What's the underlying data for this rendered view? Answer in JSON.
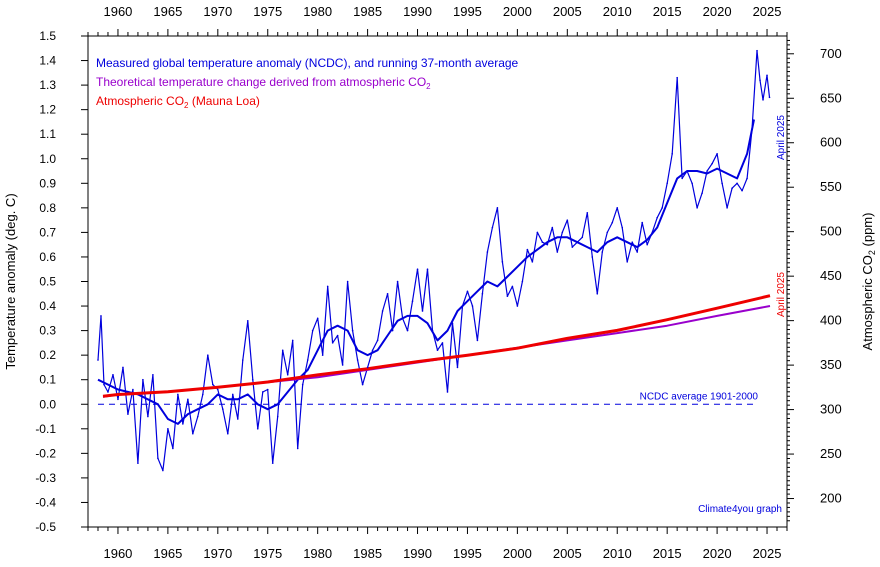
{
  "chart_data": {
    "type": "line",
    "title": "",
    "x_axis": {
      "range": [
        1957,
        2027
      ],
      "major_ticks": [
        1960,
        1965,
        1970,
        1975,
        1980,
        1985,
        1990,
        1995,
        2000,
        2005,
        2010,
        2015,
        2020,
        2025
      ],
      "tick_labels": [
        "1960",
        "1965",
        "1970",
        "1975",
        "1980",
        "1985",
        "1990",
        "1995",
        "2000",
        "2005",
        "2010",
        "2015",
        "2020",
        "2025"
      ],
      "label": ""
    },
    "y_left": {
      "label": "Temperature anomaly (deg. C)",
      "range": [
        -0.5,
        1.5
      ],
      "tick_labels": [
        "-0.5",
        "-0.4",
        "-0.3",
        "-0.2",
        "-0.1",
        "0.0",
        "0.1",
        "0.2",
        "0.3",
        "0.4",
        "0.5",
        "0.6",
        "0.7",
        "0.8",
        "0.9",
        "1.0",
        "1.1",
        "1.2",
        "1.3",
        "1.4",
        "1.5"
      ]
    },
    "y_right": {
      "label_prefix": "Atmospheric CO",
      "label_sub": "2",
      "label_suffix": " (ppm)",
      "range": [
        168,
        720
      ],
      "tick_labels": [
        "200",
        "250",
        "300",
        "350",
        "400",
        "450",
        "500",
        "550",
        "600",
        "650",
        "700"
      ]
    },
    "legend": [
      {
        "text": "Measured global temperature anomaly (NCDC), and running 37-month average",
        "sub": "",
        "tail": "",
        "color": "#0000dd"
      },
      {
        "text": "Theoretical temperature change derived from atmospheric CO",
        "sub": "2",
        "tail": "",
        "color": "#9900cc"
      },
      {
        "text": "Atmospheric CO",
        "sub": "2",
        "tail": " (Mauna Loa)",
        "color": "#ee0000"
      }
    ],
    "annotations": {
      "reference_line": "NCDC average 1901-2000",
      "credit": "Climate4you graph",
      "temp_end_label": "April 2025",
      "co2_end_label": "April 2025"
    },
    "reference_value": 0.0,
    "series": [
      {
        "name": "Measured global temperature anomaly (NCDC)",
        "color": "#0000dd",
        "x": [
          1958.0,
          1958.3,
          1958.6,
          1959.0,
          1959.5,
          1960.0,
          1960.5,
          1961.0,
          1961.5,
          1962.0,
          1962.5,
          1963.0,
          1963.5,
          1964.0,
          1964.5,
          1965.0,
          1965.5,
          1966.0,
          1966.5,
          1967.0,
          1967.5,
          1968.0,
          1968.5,
          1969.0,
          1969.5,
          1970.0,
          1970.5,
          1971.0,
          1971.5,
          1972.0,
          1972.5,
          1973.0,
          1973.5,
          1974.0,
          1974.5,
          1975.0,
          1975.5,
          1976.0,
          1976.5,
          1977.0,
          1977.5,
          1978.0,
          1978.5,
          1979.0,
          1979.5,
          1980.0,
          1980.5,
          1981.0,
          1981.5,
          1982.0,
          1982.5,
          1983.0,
          1983.5,
          1984.0,
          1984.5,
          1985.0,
          1985.5,
          1986.0,
          1986.5,
          1987.0,
          1987.5,
          1988.0,
          1988.5,
          1989.0,
          1989.5,
          1990.0,
          1990.5,
          1991.0,
          1991.5,
          1992.0,
          1992.5,
          1993.0,
          1993.5,
          1994.0,
          1994.5,
          1995.0,
          1995.5,
          1996.0,
          1996.5,
          1997.0,
          1997.5,
          1998.0,
          1998.5,
          1999.0,
          1999.5,
          2000.0,
          2000.5,
          2001.0,
          2001.5,
          2002.0,
          2002.5,
          2003.0,
          2003.5,
          2004.0,
          2004.5,
          2005.0,
          2005.5,
          2006.0,
          2006.5,
          2007.0,
          2007.5,
          2008.0,
          2008.5,
          2009.0,
          2009.5,
          2010.0,
          2010.5,
          2011.0,
          2011.5,
          2012.0,
          2012.5,
          2013.0,
          2013.5,
          2014.0,
          2014.5,
          2015.0,
          2015.5,
          2016.0,
          2016.5,
          2017.0,
          2017.5,
          2018.0,
          2018.5,
          2019.0,
          2019.5,
          2020.0,
          2020.5,
          2021.0,
          2021.5,
          2022.0,
          2022.5,
          2023.0,
          2023.5,
          2024.0,
          2024.3,
          2024.6,
          2025.0,
          2025.25
        ],
        "y": [
          0.18,
          0.36,
          0.08,
          0.05,
          0.12,
          0.02,
          0.15,
          -0.04,
          0.06,
          -0.24,
          0.1,
          -0.05,
          0.12,
          -0.22,
          -0.27,
          -0.1,
          -0.18,
          0.04,
          -0.08,
          0.02,
          -0.12,
          -0.05,
          0.04,
          0.2,
          0.08,
          0.06,
          -0.02,
          -0.12,
          0.04,
          -0.06,
          0.18,
          0.34,
          0.1,
          -0.1,
          0.05,
          0.06,
          -0.24,
          -0.05,
          0.22,
          0.12,
          0.26,
          -0.18,
          0.08,
          0.18,
          0.3,
          0.35,
          0.2,
          0.48,
          0.25,
          0.28,
          0.16,
          0.5,
          0.3,
          0.18,
          0.08,
          0.15,
          0.22,
          0.26,
          0.38,
          0.45,
          0.3,
          0.5,
          0.35,
          0.3,
          0.42,
          0.55,
          0.38,
          0.55,
          0.3,
          0.22,
          0.25,
          0.05,
          0.33,
          0.15,
          0.4,
          0.46,
          0.4,
          0.26,
          0.45,
          0.62,
          0.72,
          0.8,
          0.58,
          0.44,
          0.48,
          0.4,
          0.5,
          0.63,
          0.58,
          0.7,
          0.66,
          0.65,
          0.72,
          0.62,
          0.7,
          0.75,
          0.64,
          0.66,
          0.68,
          0.78,
          0.6,
          0.45,
          0.62,
          0.7,
          0.74,
          0.8,
          0.72,
          0.58,
          0.66,
          0.62,
          0.74,
          0.65,
          0.7,
          0.76,
          0.8,
          0.9,
          1.02,
          1.33,
          0.92,
          0.95,
          0.9,
          0.8,
          0.86,
          0.95,
          0.98,
          1.02,
          0.9,
          0.8,
          0.88,
          0.9,
          0.87,
          0.92,
          1.12,
          1.44,
          1.32,
          1.24,
          1.34,
          1.25
        ]
      },
      {
        "name": "Running 37-month average",
        "color": "#0000dd",
        "x": [
          1958.0,
          1960.0,
          1962.0,
          1964.0,
          1965.0,
          1966.0,
          1967.0,
          1968.0,
          1969.0,
          1970.0,
          1971.0,
          1972.0,
          1973.0,
          1974.0,
          1975.0,
          1976.0,
          1977.0,
          1978.0,
          1979.0,
          1980.0,
          1981.0,
          1982.0,
          1983.0,
          1984.0,
          1985.0,
          1986.0,
          1987.0,
          1988.0,
          1989.0,
          1990.0,
          1991.0,
          1992.0,
          1993.0,
          1994.0,
          1995.0,
          1996.0,
          1997.0,
          1998.0,
          1999.0,
          2000.0,
          2001.0,
          2002.0,
          2003.0,
          2004.0,
          2005.0,
          2006.0,
          2007.0,
          2008.0,
          2009.0,
          2010.0,
          2011.0,
          2012.0,
          2013.0,
          2014.0,
          2015.0,
          2016.0,
          2017.0,
          2018.0,
          2019.0,
          2020.0,
          2021.0,
          2022.0,
          2023.0,
          2023.7
        ],
        "y": [
          0.1,
          0.06,
          0.04,
          0.0,
          -0.06,
          -0.08,
          -0.04,
          -0.02,
          0.0,
          0.04,
          0.02,
          0.02,
          0.04,
          0.0,
          -0.02,
          0.0,
          0.05,
          0.1,
          0.14,
          0.22,
          0.3,
          0.32,
          0.3,
          0.22,
          0.2,
          0.22,
          0.28,
          0.34,
          0.36,
          0.36,
          0.33,
          0.26,
          0.3,
          0.38,
          0.42,
          0.46,
          0.5,
          0.48,
          0.52,
          0.56,
          0.6,
          0.63,
          0.66,
          0.68,
          0.68,
          0.66,
          0.64,
          0.62,
          0.66,
          0.68,
          0.66,
          0.64,
          0.67,
          0.72,
          0.82,
          0.92,
          0.95,
          0.95,
          0.94,
          0.96,
          0.94,
          0.92,
          1.02,
          1.16
        ]
      },
      {
        "name": "Theoretical temperature change derived from atmospheric CO2",
        "color": "#9900cc",
        "x": [
          1958.5,
          1960.0,
          1965.0,
          1970.0,
          1975.0,
          1980.0,
          1985.0,
          1990.0,
          1995.0,
          2000.0,
          2005.0,
          2010.0,
          2015.0,
          2020.0,
          2025.3
        ],
        "y": [
          0.03,
          0.04,
          0.05,
          0.07,
          0.09,
          0.11,
          0.14,
          0.17,
          0.2,
          0.23,
          0.26,
          0.29,
          0.32,
          0.36,
          0.4
        ]
      },
      {
        "name": "Atmospheric CO2 (Mauna Loa)",
        "color": "#ee0000",
        "axis": "right",
        "x": [
          1958.5,
          1960.0,
          1965.0,
          1970.0,
          1975.0,
          1980.0,
          1985.0,
          1990.0,
          1995.0,
          2000.0,
          2005.0,
          2010.0,
          2015.0,
          2020.0,
          2025.3
        ],
        "y": [
          315,
          317,
          320,
          325,
          331,
          339,
          346,
          354,
          361,
          369,
          380,
          389,
          401,
          414,
          428
        ]
      }
    ]
  }
}
